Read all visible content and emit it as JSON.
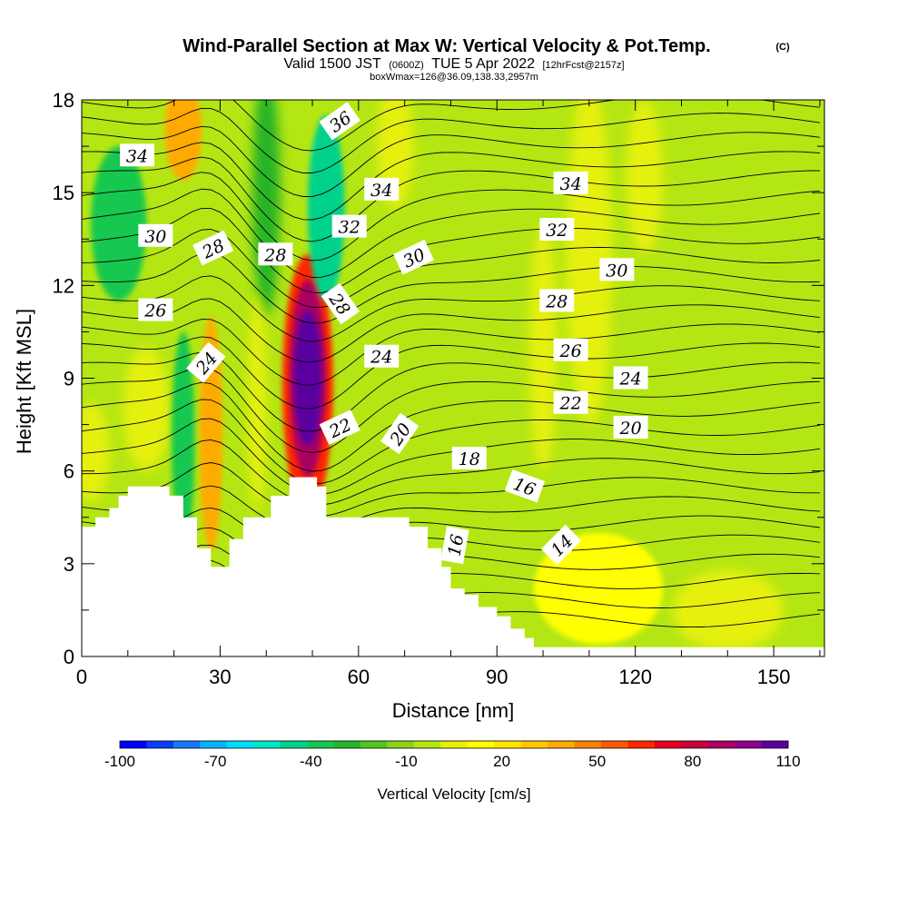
{
  "chart_data": {
    "type": "heatmap",
    "title": "Wind-Parallel Section at Max W: Vertical Velocity & Pot.Temp.",
    "title_mark": "(C)",
    "subtitle_parts": [
      "Valid 1500 JST",
      "(0600Z)",
      "TUE 5 Apr 2022",
      "[12hrFcst@2157z]"
    ],
    "info_line": "boxWmax=126@36.09,138.33,2957m",
    "xlabel": "Distance [nm]",
    "ylabel": "Height [Kft MSL]",
    "xlim": [
      0,
      161
    ],
    "ylim": [
      0,
      18
    ],
    "x_ticks": [
      0,
      30,
      60,
      90,
      120,
      150
    ],
    "y_ticks": [
      0,
      3,
      6,
      9,
      12,
      15,
      18
    ],
    "colorbar": {
      "label": "Vertical Velocity [cm/s]",
      "tick_labels": [
        "-100",
        "-70",
        "-40",
        "-10",
        "20",
        "50",
        "80",
        "110"
      ],
      "tick_values": [
        -100,
        -70,
        -40,
        -10,
        20,
        50,
        80,
        110
      ],
      "range": [
        -100,
        110
      ],
      "colors": [
        "#0000ff",
        "#0a3cff",
        "#1478ff",
        "#00b4ff",
        "#00dcff",
        "#00e6c8",
        "#00d28c",
        "#14c850",
        "#28b428",
        "#50c81e",
        "#8cd214",
        "#b4e614",
        "#e6f00a",
        "#ffff00",
        "#ffe600",
        "#ffc800",
        "#ffaa00",
        "#ff8200",
        "#ff5a00",
        "#ff2800",
        "#e6001e",
        "#c8003c",
        "#aa0064",
        "#8c008c",
        "#5a00a0"
      ]
    },
    "velocity_features": [
      {
        "kind": "updraft",
        "x": 49,
        "y": 9.0,
        "rx": 3,
        "ry": 2.2,
        "w": 110
      },
      {
        "kind": "updraft",
        "x": 49,
        "y": 9.0,
        "rx": 4,
        "ry": 3.2,
        "w": 85
      },
      {
        "kind": "updraft",
        "x": 49,
        "y": 8.8,
        "rx": 5.5,
        "ry": 4.2,
        "w": 60
      },
      {
        "kind": "updraft",
        "x": 28,
        "y": 7.2,
        "rx": 2.5,
        "ry": 3.8,
        "w": 35
      },
      {
        "kind": "updraft",
        "x": 22,
        "y": 17.0,
        "rx": 4,
        "ry": 1.6,
        "w": 40
      },
      {
        "kind": "updraft",
        "x": 112,
        "y": 2.2,
        "rx": 14,
        "ry": 1.8,
        "w": 10
      },
      {
        "kind": "downdraft",
        "x": 53,
        "y": 14.5,
        "rx": 4,
        "ry": 3,
        "w": -45
      },
      {
        "kind": "downdraft",
        "x": 22,
        "y": 7.0,
        "rx": 2.5,
        "ry": 3.5,
        "w": -40
      },
      {
        "kind": "downdraft",
        "x": 8,
        "y": 14.0,
        "rx": 6,
        "ry": 2.5,
        "w": -35
      }
    ],
    "terrain": [
      [
        0,
        4.2
      ],
      [
        3,
        4.2
      ],
      [
        3,
        4.5
      ],
      [
        6,
        4.5
      ],
      [
        6,
        4.8
      ],
      [
        8,
        4.8
      ],
      [
        8,
        5.2
      ],
      [
        10,
        5.2
      ],
      [
        10,
        5.5
      ],
      [
        19,
        5.5
      ],
      [
        19,
        5.2
      ],
      [
        22,
        5.2
      ],
      [
        22,
        4.5
      ],
      [
        25,
        4.5
      ],
      [
        25,
        3.5
      ],
      [
        28,
        3.5
      ],
      [
        28,
        2.9
      ],
      [
        32,
        2.9
      ],
      [
        32,
        3.8
      ],
      [
        35,
        3.8
      ],
      [
        35,
        4.5
      ],
      [
        41,
        4.5
      ],
      [
        41,
        5.2
      ],
      [
        45,
        5.2
      ],
      [
        45,
        5.8
      ],
      [
        51,
        5.8
      ],
      [
        51,
        5.5
      ],
      [
        53,
        5.5
      ],
      [
        53,
        4.5
      ],
      [
        71,
        4.5
      ],
      [
        71,
        4.2
      ],
      [
        75,
        4.2
      ],
      [
        75,
        3.5
      ],
      [
        78,
        3.5
      ],
      [
        78,
        2.9
      ],
      [
        80,
        2.9
      ],
      [
        80,
        2.2
      ],
      [
        83,
        2.2
      ],
      [
        83,
        2.0
      ],
      [
        86,
        2.0
      ],
      [
        86,
        1.6
      ],
      [
        90,
        1.6
      ],
      [
        90,
        1.3
      ],
      [
        93,
        1.3
      ],
      [
        93,
        0.9
      ],
      [
        96,
        0.9
      ],
      [
        96,
        0.6
      ],
      [
        98,
        0.6
      ],
      [
        98,
        0.3
      ],
      [
        161,
        0.3
      ]
    ],
    "contour_labels": [
      {
        "text": "34",
        "x": 12,
        "y": 16.2,
        "angle": 0
      },
      {
        "text": "36",
        "x": 56,
        "y": 17.3,
        "angle": -35
      },
      {
        "text": "34",
        "x": 65,
        "y": 15.1,
        "angle": 0
      },
      {
        "text": "34",
        "x": 106,
        "y": 15.3,
        "angle": 0
      },
      {
        "text": "30",
        "x": 16,
        "y": 13.6,
        "angle": 0
      },
      {
        "text": "28",
        "x": 28.5,
        "y": 13.2,
        "angle": -25
      },
      {
        "text": "28",
        "x": 42,
        "y": 13.0,
        "angle": 0
      },
      {
        "text": "32",
        "x": 58,
        "y": 13.9,
        "angle": 0
      },
      {
        "text": "30",
        "x": 72,
        "y": 12.9,
        "angle": -25
      },
      {
        "text": "32",
        "x": 103,
        "y": 13.8,
        "angle": 0
      },
      {
        "text": "30",
        "x": 116,
        "y": 12.5,
        "angle": 0
      },
      {
        "text": "28",
        "x": 56,
        "y": 11.4,
        "angle": 55
      },
      {
        "text": "26",
        "x": 16,
        "y": 11.2,
        "angle": 0
      },
      {
        "text": "28",
        "x": 103,
        "y": 11.5,
        "angle": 0
      },
      {
        "text": "26",
        "x": 106,
        "y": 9.9,
        "angle": 0
      },
      {
        "text": "24",
        "x": 27,
        "y": 9.5,
        "angle": -50
      },
      {
        "text": "24",
        "x": 65,
        "y": 9.7,
        "angle": 0
      },
      {
        "text": "24",
        "x": 119,
        "y": 9.0,
        "angle": 0
      },
      {
        "text": "22",
        "x": 56,
        "y": 7.4,
        "angle": -25
      },
      {
        "text": "20",
        "x": 69,
        "y": 7.2,
        "angle": -55
      },
      {
        "text": "22",
        "x": 106,
        "y": 8.2,
        "angle": 0
      },
      {
        "text": "20",
        "x": 119,
        "y": 7.4,
        "angle": 0
      },
      {
        "text": "18",
        "x": 84,
        "y": 6.4,
        "angle": 0
      },
      {
        "text": "16",
        "x": 96,
        "y": 5.5,
        "angle": 20
      },
      {
        "text": "16",
        "x": 81,
        "y": 3.6,
        "angle": -80
      },
      {
        "text": "14",
        "x": 104,
        "y": 3.6,
        "angle": -45
      }
    ]
  }
}
